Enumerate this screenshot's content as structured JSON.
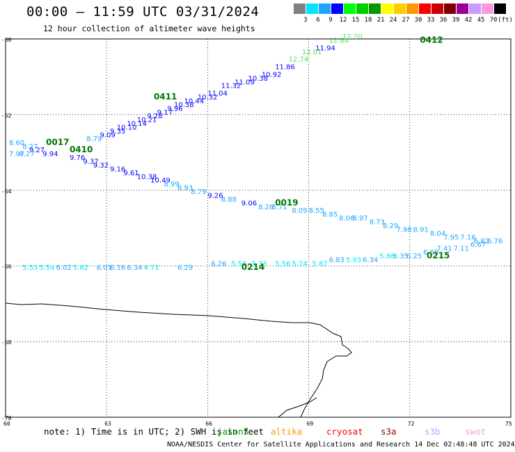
{
  "header": {
    "title": "00:00 – 11:59 UTC 03/31/2024",
    "subtitle": "12 hour collection of altimeter wave heights"
  },
  "legend": {
    "unit": "(ft)",
    "items": [
      {
        "label": "3",
        "color": "#808080"
      },
      {
        "label": "6",
        "color": "#00e5ff"
      },
      {
        "label": "9",
        "color": "#1ea6ff"
      },
      {
        "label": "12",
        "color": "#0000ff"
      },
      {
        "label": "15",
        "color": "#00ff00"
      },
      {
        "label": "18",
        "color": "#00cc00"
      },
      {
        "label": "21",
        "color": "#009900"
      },
      {
        "label": "24",
        "color": "#ffff00"
      },
      {
        "label": "27",
        "color": "#ffcc00"
      },
      {
        "label": "30",
        "color": "#ff9900"
      },
      {
        "label": "33",
        "color": "#ff0000"
      },
      {
        "label": "36",
        "color": "#cc0000"
      },
      {
        "label": "39",
        "color": "#800000"
      },
      {
        "label": "42",
        "color": "#990099"
      },
      {
        "label": "45",
        "color": "#cc99ff"
      },
      {
        "label": "70",
        "color": "#ff99dd"
      },
      {
        "label": "",
        "color": "#000000"
      }
    ]
  },
  "axes": {
    "lat_labels": [
      "-60",
      "-62",
      "-64",
      "-66",
      "-68",
      "-70"
    ],
    "lon_labels": [
      "60",
      "63",
      "66",
      "69",
      "72",
      "75"
    ]
  },
  "map_data": {
    "lon_range": [
      60,
      75
    ],
    "lat_range": [
      -70,
      -60
    ],
    "time_labels": [
      {
        "text": "0412",
        "lon": 72.3,
        "lat": -60.1
      },
      {
        "text": "0411",
        "lon": 64.4,
        "lat": -61.6
      },
      {
        "text": "0017",
        "lon": 61.2,
        "lat": -62.8
      },
      {
        "text": "0410",
        "lon": 61.9,
        "lat": -63.0
      },
      {
        "text": "0019",
        "lon": 68.0,
        "lat": -64.4
      },
      {
        "text": "0215",
        "lon": 72.5,
        "lat": -65.8
      },
      {
        "text": "0214",
        "lon": 67.0,
        "lat": -66.1
      }
    ],
    "tracks": [
      {
        "name": "track-0411",
        "points": [
          {
            "text": "8.79",
            "lon": 62.4,
            "lat": -62.7
          },
          {
            "text": "9.09",
            "lon": 62.8,
            "lat": -62.6
          },
          {
            "text": "9.35",
            "lon": 63.1,
            "lat": -62.5
          },
          {
            "text": "10.10",
            "lon": 63.3,
            "lat": -62.4
          },
          {
            "text": "10.14",
            "lon": 63.6,
            "lat": -62.3
          },
          {
            "text": "10.21",
            "lon": 63.9,
            "lat": -62.2
          },
          {
            "text": "9.28",
            "lon": 64.2,
            "lat": -62.1
          },
          {
            "text": "9.17",
            "lon": 64.5,
            "lat": -62.0
          },
          {
            "text": "9.96",
            "lon": 64.8,
            "lat": -61.9
          },
          {
            "text": "10.38",
            "lon": 65.0,
            "lat": -61.8
          },
          {
            "text": "10.44",
            "lon": 65.3,
            "lat": -61.7
          },
          {
            "text": "10.32",
            "lon": 65.7,
            "lat": -61.6
          },
          {
            "text": "11.04",
            "lon": 66.0,
            "lat": -61.5
          },
          {
            "text": "11.32",
            "lon": 66.4,
            "lat": -61.3
          },
          {
            "text": "11.09",
            "lon": 66.8,
            "lat": -61.2
          },
          {
            "text": "10.38",
            "lon": 67.2,
            "lat": -61.1
          },
          {
            "text": "10.92",
            "lon": 67.6,
            "lat": -61.0
          },
          {
            "text": "11.86",
            "lon": 68.0,
            "lat": -60.8
          },
          {
            "text": "12.74",
            "lon": 68.4,
            "lat": -60.6
          },
          {
            "text": "12.01",
            "lon": 68.8,
            "lat": -60.4
          },
          {
            "text": "11.94",
            "lon": 69.2,
            "lat": -60.3
          },
          {
            "text": "12.64",
            "lon": 69.6,
            "lat": -60.1
          },
          {
            "text": "12.20",
            "lon": 70.0,
            "lat": -60.0
          }
        ]
      },
      {
        "name": "track-0019",
        "points": [
          {
            "text": "8.60",
            "lon": 60.1,
            "lat": -62.8
          },
          {
            "text": "8.27",
            "lon": 60.5,
            "lat": -62.9
          },
          {
            "text": "9.27",
            "lon": 60.7,
            "lat": -63.0
          },
          {
            "text": "7.97",
            "lon": 60.1,
            "lat": -63.1
          },
          {
            "text": "8.27",
            "lon": 60.4,
            "lat": -63.1
          },
          {
            "text": "9.94",
            "lon": 61.1,
            "lat": -63.1
          },
          {
            "text": "9.76",
            "lon": 61.9,
            "lat": -63.2
          },
          {
            "text": "9.37",
            "lon": 62.3,
            "lat": -63.3
          },
          {
            "text": "9.32",
            "lon": 62.6,
            "lat": -63.4
          },
          {
            "text": "9.16",
            "lon": 63.1,
            "lat": -63.5
          },
          {
            "text": "9.61",
            "lon": 63.5,
            "lat": -63.6
          },
          {
            "text": "10.38",
            "lon": 63.9,
            "lat": -63.7
          },
          {
            "text": "10.49",
            "lon": 64.3,
            "lat": -63.8
          },
          {
            "text": "8.99",
            "lon": 64.7,
            "lat": -63.9
          },
          {
            "text": "8.93",
            "lon": 65.1,
            "lat": -64.0
          },
          {
            "text": "8.79",
            "lon": 65.5,
            "lat": -64.1
          },
          {
            "text": "9.26",
            "lon": 66.0,
            "lat": -64.2
          },
          {
            "text": "8.88",
            "lon": 66.4,
            "lat": -64.3
          },
          {
            "text": "9.06",
            "lon": 67.0,
            "lat": -64.4
          },
          {
            "text": "8.28",
            "lon": 67.5,
            "lat": -64.5
          },
          {
            "text": "8.71",
            "lon": 67.9,
            "lat": -64.5
          },
          {
            "text": "8.09",
            "lon": 68.5,
            "lat": -64.6
          },
          {
            "text": "8.55",
            "lon": 69.0,
            "lat": -64.6
          },
          {
            "text": "8.85",
            "lon": 69.4,
            "lat": -64.7
          },
          {
            "text": "8.06",
            "lon": 69.9,
            "lat": -64.8
          },
          {
            "text": "8.97",
            "lon": 70.3,
            "lat": -64.8
          },
          {
            "text": "8.73",
            "lon": 70.8,
            "lat": -64.9
          },
          {
            "text": "8.29",
            "lon": 71.2,
            "lat": -65.0
          },
          {
            "text": "7.98",
            "lon": 71.6,
            "lat": -65.1
          },
          {
            "text": "8.91",
            "lon": 72.1,
            "lat": -65.1
          },
          {
            "text": "8.04",
            "lon": 72.6,
            "lat": -65.2
          },
          {
            "text": "7.95",
            "lon": 73.0,
            "lat": -65.3
          },
          {
            "text": "7.16",
            "lon": 73.5,
            "lat": -65.3
          },
          {
            "text": "6.82",
            "lon": 73.9,
            "lat": -65.4
          },
          {
            "text": "6.76",
            "lon": 74.3,
            "lat": -65.4
          }
        ]
      },
      {
        "name": "track-0215",
        "points": [
          {
            "text": "5.53",
            "lon": 60.5,
            "lat": -66.1
          },
          {
            "text": "5.54",
            "lon": 61.0,
            "lat": -66.1
          },
          {
            "text": "6.02",
            "lon": 61.5,
            "lat": -66.1
          },
          {
            "text": "5.62",
            "lon": 62.0,
            "lat": -66.1
          },
          {
            "text": "6.01",
            "lon": 62.7,
            "lat": -66.1
          },
          {
            "text": "6.16",
            "lon": 63.1,
            "lat": -66.1
          },
          {
            "text": "6.34",
            "lon": 63.6,
            "lat": -66.1
          },
          {
            "text": "4.71",
            "lon": 64.1,
            "lat": -66.1
          },
          {
            "text": "6.29",
            "lon": 65.1,
            "lat": -66.1
          },
          {
            "text": "6.26",
            "lon": 66.1,
            "lat": -66.0
          },
          {
            "text": "5.56",
            "lon": 66.7,
            "lat": -66.0
          },
          {
            "text": "5.33",
            "lon": 67.3,
            "lat": -66.0
          },
          {
            "text": "5.56",
            "lon": 68.0,
            "lat": -66.0
          },
          {
            "text": "5.74",
            "lon": 68.5,
            "lat": -66.0
          },
          {
            "text": "5.87",
            "lon": 69.1,
            "lat": -66.0
          },
          {
            "text": "6.83",
            "lon": 69.6,
            "lat": -65.9
          },
          {
            "text": "5.93",
            "lon": 70.1,
            "lat": -65.9
          },
          {
            "text": "6.34",
            "lon": 70.6,
            "lat": -65.9
          },
          {
            "text": "5.86",
            "lon": 71.1,
            "lat": -65.8
          },
          {
            "text": "6.35",
            "lon": 71.5,
            "lat": -65.8
          },
          {
            "text": "6.25",
            "lon": 71.9,
            "lat": -65.8
          },
          {
            "text": "6.69",
            "lon": 72.4,
            "lat": -65.7
          },
          {
            "text": "7.41",
            "lon": 72.8,
            "lat": -65.6
          },
          {
            "text": "7.11",
            "lon": 73.3,
            "lat": -65.6
          },
          {
            "text": "6.67",
            "lon": 73.8,
            "lat": -65.5
          }
        ]
      }
    ]
  },
  "note": {
    "text": "note: 1) Time is in UTC; 2) SWH is in feet",
    "satellites": [
      {
        "name": "jason3",
        "color": "#009900"
      },
      {
        "name": "altika",
        "color": "#ff9900"
      },
      {
        "name": "cryosat",
        "color": "#ff0000"
      },
      {
        "name": "s3a",
        "color": "#990000"
      },
      {
        "name": "s3b",
        "color": "#cc99ff"
      },
      {
        "name": "swot",
        "color": "#ff99dd"
      }
    ]
  },
  "footer": {
    "text": "NOAA/NESDIS Center for Satellite Applications and Research   14 Dec 02:48:48 UTC 2024"
  }
}
